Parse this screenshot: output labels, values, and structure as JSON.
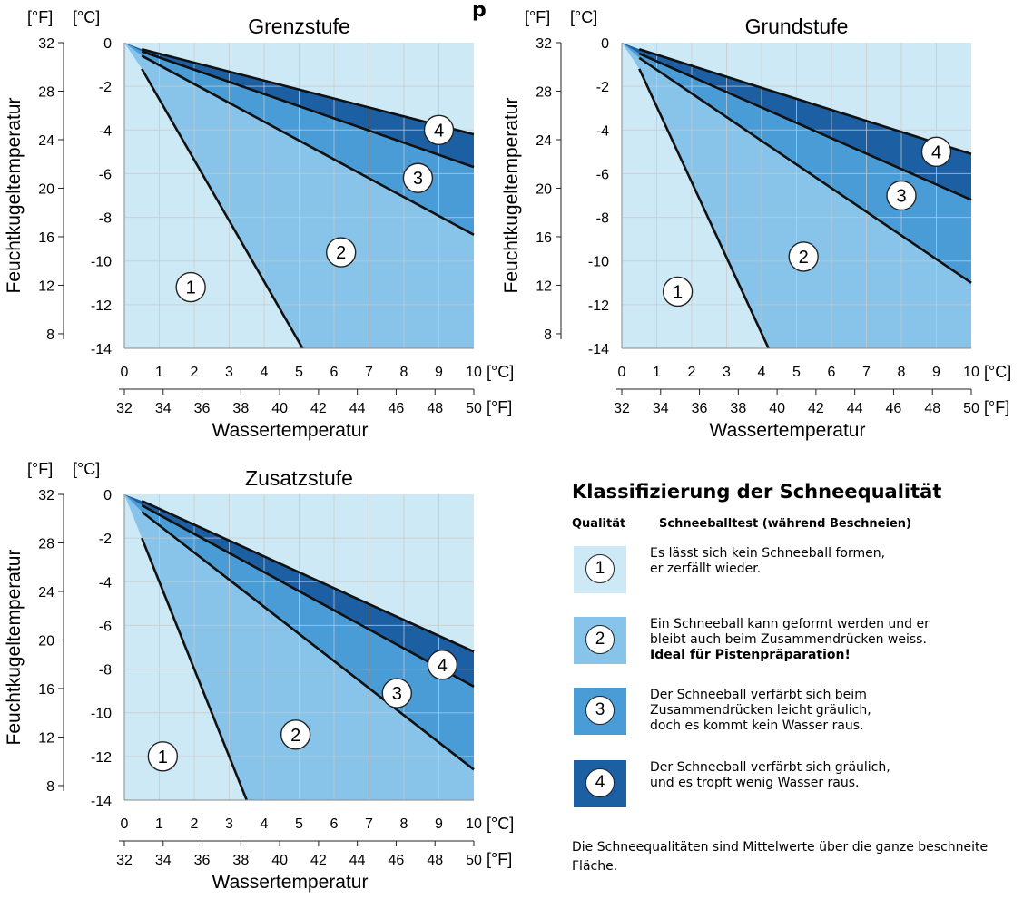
{
  "page_title_fragment": "p",
  "chart_data": [
    {
      "type": "area",
      "title": "Grenzstufe",
      "xlabel": "Wassertemperatur",
      "ylabel": "Feuchtkugeltemperatur",
      "x_unit_primary": "[°C]",
      "x_unit_secondary": "[°F]",
      "y_unit_left": "[°F]",
      "y_unit_right": "[°C]",
      "xlim": [
        0,
        10
      ],
      "ylim": [
        -14,
        0
      ],
      "x_ticks_c": [
        "0",
        "1",
        "2",
        "3",
        "4",
        "5",
        "6",
        "7",
        "8",
        "9",
        "10"
      ],
      "x_ticks_f": [
        "32",
        "34",
        "36",
        "38",
        "40",
        "42",
        "44",
        "46",
        "48",
        "50"
      ],
      "y_ticks_c": [
        "0",
        "-2",
        "-4",
        "-6",
        "-8",
        "-10",
        "-12",
        "-14"
      ],
      "y_ticks_f": [
        "32",
        "28",
        "24",
        "20",
        "16",
        "12",
        "8"
      ],
      "grid": true,
      "boundary_lines": [
        {
          "from": [
            0.5,
            -1.2
          ],
          "to": [
            5.1,
            -14
          ]
        },
        {
          "from": [
            0.5,
            -0.6
          ],
          "to": [
            10,
            -8.8
          ]
        },
        {
          "from": [
            0.5,
            -0.4
          ],
          "to": [
            10,
            -5.7
          ]
        },
        {
          "from": [
            0.5,
            -0.3
          ],
          "to": [
            10,
            -4.2
          ]
        }
      ],
      "zone_labels": [
        {
          "label": "1",
          "x": 1.9,
          "y": -11.2
        },
        {
          "label": "2",
          "x": 6.2,
          "y": -9.6
        },
        {
          "label": "3",
          "x": 8.4,
          "y": -6.2
        },
        {
          "label": "4",
          "x": 9.0,
          "y": -4.0
        }
      ]
    },
    {
      "type": "area",
      "title": "Grundstufe",
      "xlabel": "Wassertemperatur",
      "ylabel": "Feuchtkugeltemperatur",
      "x_unit_primary": "[°C]",
      "x_unit_secondary": "[°F]",
      "y_unit_left": "[°F]",
      "y_unit_right": "[°C]",
      "xlim": [
        0,
        10
      ],
      "ylim": [
        -14,
        0
      ],
      "x_ticks_c": [
        "0",
        "1",
        "2",
        "3",
        "4",
        "5",
        "6",
        "7",
        "8",
        "9",
        "10"
      ],
      "x_ticks_f": [
        "32",
        "34",
        "36",
        "38",
        "40",
        "42",
        "44",
        "46",
        "48",
        "50"
      ],
      "y_ticks_c": [
        "0",
        "-2",
        "-4",
        "-6",
        "-8",
        "-10",
        "-12",
        "-14"
      ],
      "y_ticks_f": [
        "32",
        "28",
        "24",
        "20",
        "16",
        "12",
        "8"
      ],
      "grid": true,
      "boundary_lines": [
        {
          "from": [
            0.5,
            -1.2
          ],
          "to": [
            4.2,
            -14
          ]
        },
        {
          "from": [
            0.5,
            -0.7
          ],
          "to": [
            10,
            -11.0
          ]
        },
        {
          "from": [
            0.5,
            -0.5
          ],
          "to": [
            10,
            -7.2
          ]
        },
        {
          "from": [
            0.5,
            -0.3
          ],
          "to": [
            10,
            -5.1
          ]
        }
      ],
      "zone_labels": [
        {
          "label": "1",
          "x": 1.6,
          "y": -11.4
        },
        {
          "label": "2",
          "x": 5.2,
          "y": -9.8
        },
        {
          "label": "3",
          "x": 8.0,
          "y": -7.0
        },
        {
          "label": "4",
          "x": 9.0,
          "y": -5.0
        }
      ]
    },
    {
      "type": "area",
      "title": "Zusatzstufe",
      "xlabel": "Wassertemperatur",
      "ylabel": "Feuchtkugeltemperatur",
      "x_unit_primary": "[°C]",
      "x_unit_secondary": "[°F]",
      "y_unit_left": "[°F]",
      "y_unit_right": "[°C]",
      "xlim": [
        0,
        10
      ],
      "ylim": [
        -14,
        0
      ],
      "x_ticks_c": [
        "0",
        "1",
        "2",
        "3",
        "4",
        "5",
        "6",
        "7",
        "8",
        "9",
        "10"
      ],
      "x_ticks_f": [
        "32",
        "34",
        "36",
        "38",
        "40",
        "42",
        "44",
        "46",
        "48",
        "50"
      ],
      "y_ticks_c": [
        "0",
        "-2",
        "-4",
        "-6",
        "-8",
        "-10",
        "-12",
        "-14"
      ],
      "y_ticks_f": [
        "32",
        "28",
        "24",
        "20",
        "16",
        "12",
        "8"
      ],
      "grid": true,
      "boundary_lines": [
        {
          "from": [
            0.5,
            -2.0
          ],
          "to": [
            3.5,
            -14
          ]
        },
        {
          "from": [
            0.5,
            -0.8
          ],
          "to": [
            10,
            -12.6
          ]
        },
        {
          "from": [
            0.5,
            -0.5
          ],
          "to": [
            10,
            -8.8
          ]
        },
        {
          "from": [
            0.5,
            -0.3
          ],
          "to": [
            10,
            -7.2
          ]
        }
      ],
      "zone_labels": [
        {
          "label": "1",
          "x": 1.1,
          "y": -12.0
        },
        {
          "label": "2",
          "x": 4.9,
          "y": -11.0
        },
        {
          "label": "3",
          "x": 7.8,
          "y": -9.1
        },
        {
          "label": "4",
          "x": 9.1,
          "y": -7.8
        }
      ]
    }
  ],
  "colors": {
    "zone1": "#cde9f6",
    "zone2": "#88c4ea",
    "zone3": "#4a9cd7",
    "zone4": "#1c5fa3",
    "grid": "#c8c8c8",
    "line": "#111111"
  },
  "legend": {
    "title": "Klassifizierung der Schneequalität",
    "col_quality": "Qualität",
    "col_test": "Schneeballtest (während Beschneien)",
    "items": [
      {
        "num": "1",
        "color": "#cde9f6",
        "line1": "Es lässt sich kein Schneeball formen,",
        "line2": "er zerfällt wieder.",
        "highlight": ""
      },
      {
        "num": "2",
        "color": "#88c4ea",
        "line1": "Ein Schneeball kann geformt werden und er",
        "line2": "bleibt auch beim Zusammendrücken weiss.",
        "highlight": "Ideal für Pistenpräparation!"
      },
      {
        "num": "3",
        "color": "#4a9cd7",
        "line1": "Der Schneeball verfärbt sich beim",
        "line2": "Zusammendrücken leicht gräulich,",
        "line3": "doch es kommt kein Wasser raus.",
        "highlight": ""
      },
      {
        "num": "4",
        "color": "#1c5fa3",
        "line1": "Der Schneeball verfärbt sich gräulich,",
        "line2": "und es tropft wenig Wasser raus.",
        "highlight": ""
      }
    ]
  },
  "footnote": "Die Schneequalitäten sind Mittelwerte über die ganze beschneite Fläche."
}
